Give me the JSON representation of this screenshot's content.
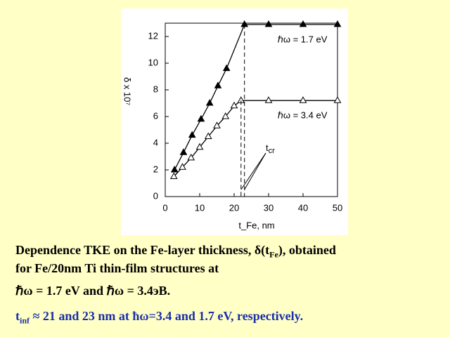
{
  "chart_data": {
    "type": "line",
    "y_label": "δ x 10⁷",
    "x_label": "t_Fe, nm",
    "xlim": [
      0,
      50
    ],
    "xticks": [
      0,
      10,
      20,
      30,
      40,
      50
    ],
    "ylim": [
      0,
      13
    ],
    "yticks": [
      0,
      2,
      4,
      6,
      8,
      10,
      12
    ],
    "series": [
      {
        "name": "ℏω = 1.7 eV",
        "color": "#000000",
        "marker": "filled-triangle",
        "x": [
          2.7,
          5.3,
          7.8,
          10.4,
          12.9,
          15.3,
          17.8,
          23,
          30,
          40,
          50
        ],
        "values": [
          2.0,
          3.3,
          4.6,
          5.8,
          7.0,
          8.3,
          9.6,
          12.9,
          12.9,
          12.9,
          12.9
        ]
      },
      {
        "name": "ℏω = 3.4 eV",
        "color": "#000000",
        "marker": "open-triangle",
        "x": [
          2.5,
          5,
          7.5,
          10,
          12.5,
          15,
          17.5,
          20,
          22,
          30,
          40,
          50
        ],
        "values": [
          1.5,
          2.2,
          2.9,
          3.7,
          4.5,
          5.3,
          6.0,
          6.8,
          7.2,
          7.2,
          7.2,
          7.2
        ]
      }
    ],
    "tcr_x": [
      23,
      22
    ],
    "tcr": [
      "t",
      "cr"
    ]
  },
  "caption": {
    "line1": [
      "Dependence TKE on the Fe-layer thickness, δ(t",
      "Fe",
      "), obtained"
    ],
    "line2": "for Fe/20nm Ti thin-film structures at",
    "line3": "ℏω = 1.7 eV and ℏω = 3.4эВ.",
    "line4": [
      "t",
      "inf",
      " ≈ 21 and 23 nm at ħω=3.4 and 1.7 eV, respectively."
    ]
  }
}
